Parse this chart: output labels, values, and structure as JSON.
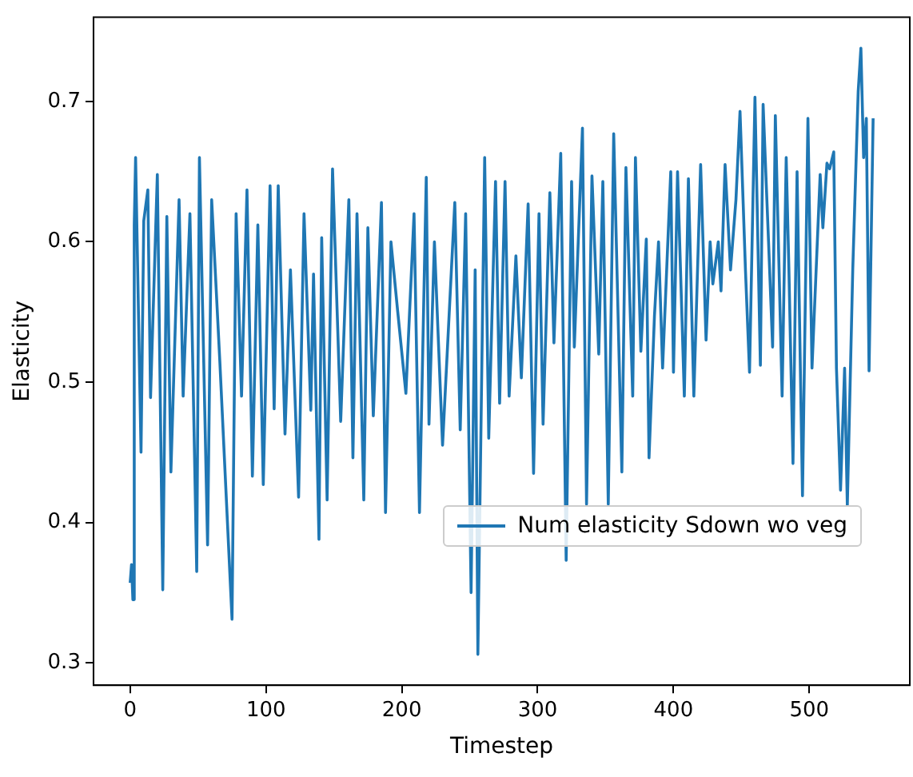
{
  "chart_data": {
    "type": "line",
    "xlabel": "Timestep",
    "ylabel": "Elasticity",
    "x": [
      0,
      1,
      2,
      3,
      4,
      8,
      10,
      13,
      15,
      20,
      24,
      27,
      30,
      36,
      39,
      44,
      49,
      51,
      57,
      60,
      66,
      75,
      78,
      82,
      86,
      90,
      94,
      98,
      103,
      106,
      109,
      114,
      118,
      124,
      128,
      133,
      135,
      139,
      141,
      145,
      149,
      155,
      161,
      164,
      167,
      172,
      175,
      179,
      185,
      188,
      192,
      197,
      203,
      209,
      213,
      218,
      220,
      224,
      230,
      239,
      243,
      247,
      251,
      254,
      256,
      261,
      264,
      269,
      272,
      276,
      279,
      284,
      288,
      293,
      297,
      301,
      304,
      309,
      312,
      317,
      321,
      325,
      327,
      333,
      336,
      340,
      345,
      348,
      352,
      356,
      362,
      365,
      370,
      372,
      376,
      380,
      382,
      386,
      389,
      392,
      398,
      400,
      403,
      408,
      411,
      415,
      420,
      424,
      427,
      429,
      433,
      435,
      438,
      442,
      446,
      449,
      453,
      456,
      460,
      464,
      466,
      470,
      473,
      475,
      480,
      483,
      485,
      488,
      491,
      495,
      499,
      502,
      508,
      510,
      513,
      515,
      518,
      520,
      523,
      526,
      528,
      532,
      536,
      538,
      540,
      542,
      544,
      547
    ],
    "series": [
      {
        "name": "Num elasticity Sdown wo veg",
        "color": "#1f77b4",
        "values": [
          0.357,
          0.37,
          0.345,
          0.612,
          0.66,
          0.45,
          0.615,
          0.637,
          0.489,
          0.648,
          0.352,
          0.618,
          0.436,
          0.63,
          0.49,
          0.62,
          0.365,
          0.66,
          0.384,
          0.63,
          0.515,
          0.331,
          0.62,
          0.49,
          0.637,
          0.433,
          0.612,
          0.427,
          0.64,
          0.481,
          0.64,
          0.463,
          0.58,
          0.418,
          0.62,
          0.48,
          0.577,
          0.388,
          0.603,
          0.416,
          0.652,
          0.472,
          0.63,
          0.446,
          0.62,
          0.416,
          0.61,
          0.476,
          0.628,
          0.407,
          0.6,
          0.55,
          0.492,
          0.62,
          0.407,
          0.646,
          0.47,
          0.6,
          0.455,
          0.628,
          0.466,
          0.62,
          0.35,
          0.58,
          0.306,
          0.66,
          0.46,
          0.643,
          0.485,
          0.643,
          0.49,
          0.59,
          0.503,
          0.627,
          0.435,
          0.62,
          0.47,
          0.635,
          0.528,
          0.663,
          0.373,
          0.643,
          0.525,
          0.681,
          0.413,
          0.647,
          0.52,
          0.643,
          0.413,
          0.677,
          0.436,
          0.653,
          0.49,
          0.66,
          0.522,
          0.602,
          0.446,
          0.547,
          0.6,
          0.51,
          0.65,
          0.507,
          0.65,
          0.49,
          0.645,
          0.49,
          0.655,
          0.53,
          0.6,
          0.57,
          0.6,
          0.565,
          0.655,
          0.58,
          0.63,
          0.693,
          0.58,
          0.507,
          0.703,
          0.512,
          0.698,
          0.6,
          0.525,
          0.69,
          0.49,
          0.66,
          0.58,
          0.442,
          0.65,
          0.419,
          0.688,
          0.51,
          0.648,
          0.61,
          0.656,
          0.652,
          0.664,
          0.51,
          0.423,
          0.51,
          0.412,
          0.58,
          0.707,
          0.738,
          0.66,
          0.688,
          0.508,
          0.688
        ]
      }
    ],
    "xlim": [
      -27,
      574
    ],
    "xticks": [
      0,
      100,
      200,
      300,
      400,
      500
    ],
    "ylim": [
      0.284,
      0.76
    ],
    "yticks": [
      0.3,
      0.4,
      0.5,
      0.6,
      0.7
    ],
    "grid": false,
    "legend": "lower right",
    "marker": "none",
    "line_style": "solid"
  }
}
